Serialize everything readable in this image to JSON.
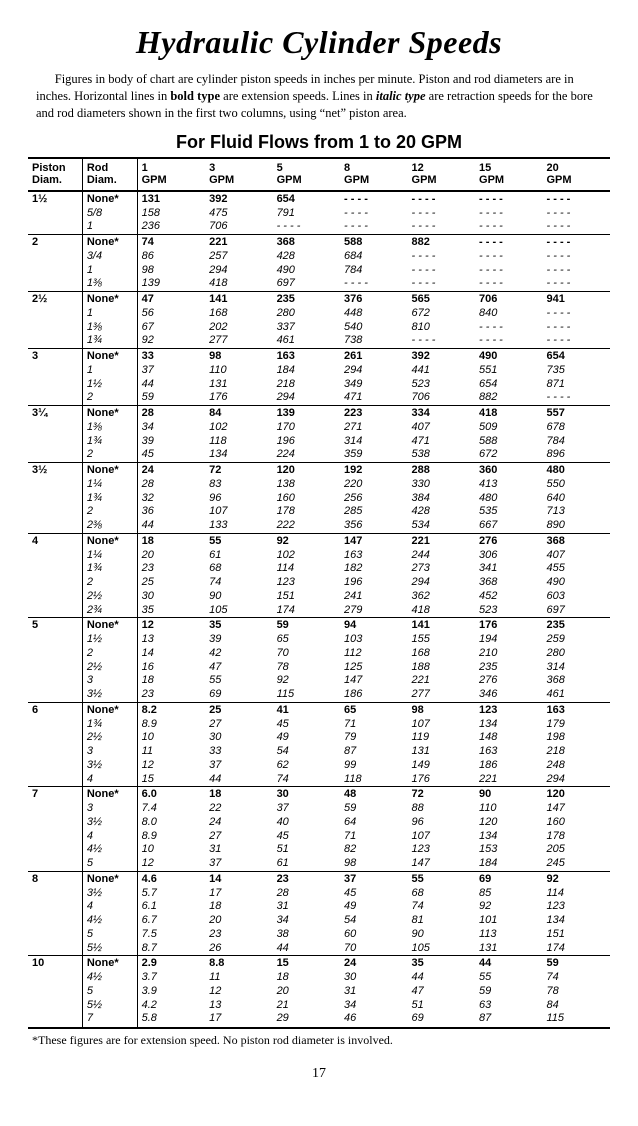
{
  "title": "Hydraulic Cylinder Speeds",
  "intro_before_bold": "Figures in body of chart are cylinder piston speeds in inches per minute. Piston and rod diameters are in inches. Horizontal lines in ",
  "intro_bold": "bold type",
  "intro_mid": " are extension speeds. Lines in ",
  "intro_italic": "italic type",
  "intro_after": " are retraction speeds for the bore and rod diameters shown in the first two columns, using “net” piston area.",
  "subtitle": "For Fluid Flows from 1 to 20 GPM",
  "columns": {
    "piston": "Piston\nDiam.",
    "rod": "Rod\nDiam.",
    "gpm": [
      "1\nGPM",
      "3\nGPM",
      "5\nGPM",
      "8\nGPM",
      "12\nGPM",
      "15\nGPM",
      "20\nGPM"
    ]
  },
  "groups": [
    {
      "piston": "1½",
      "rows": [
        {
          "rod": "None*",
          "type": "ext",
          "v": [
            "131",
            "392",
            "654",
            "- - - -",
            "- - - -",
            "- - - -",
            "- - - -"
          ]
        },
        {
          "rod": "5/8",
          "type": "ret",
          "v": [
            "158",
            "475",
            "791",
            "- - - -",
            "- - - -",
            "- - - -",
            "- - - -"
          ]
        },
        {
          "rod": "1",
          "type": "ret",
          "v": [
            "236",
            "706",
            "- - - -",
            "- - - -",
            "- - - -",
            "- - - -",
            "- - - -"
          ]
        }
      ]
    },
    {
      "piston": "2",
      "rows": [
        {
          "rod": "None*",
          "type": "ext",
          "v": [
            "74",
            "221",
            "368",
            "588",
            "882",
            "- - - -",
            "- - - -"
          ]
        },
        {
          "rod": "3/4",
          "type": "ret",
          "v": [
            "86",
            "257",
            "428",
            "684",
            "- - - -",
            "- - - -",
            "- - - -"
          ]
        },
        {
          "rod": "1",
          "type": "ret",
          "v": [
            "98",
            "294",
            "490",
            "784",
            "- - - -",
            "- - - -",
            "- - - -"
          ]
        },
        {
          "rod": "1⅜",
          "type": "ret",
          "v": [
            "139",
            "418",
            "697",
            "- - - -",
            "- - - -",
            "- - - -",
            "- - - -"
          ]
        }
      ]
    },
    {
      "piston": "2½",
      "rows": [
        {
          "rod": "None*",
          "type": "ext",
          "v": [
            "47",
            "141",
            "235",
            "376",
            "565",
            "706",
            "941"
          ]
        },
        {
          "rod": "1",
          "type": "ret",
          "v": [
            "56",
            "168",
            "280",
            "448",
            "672",
            "840",
            "- - - -"
          ]
        },
        {
          "rod": "1⅜",
          "type": "ret",
          "v": [
            "67",
            "202",
            "337",
            "540",
            "810",
            "- - - -",
            "- - - -"
          ]
        },
        {
          "rod": "1¾",
          "type": "ret",
          "v": [
            "92",
            "277",
            "461",
            "738",
            "- - - -",
            "- - - -",
            "- - - -"
          ]
        }
      ]
    },
    {
      "piston": "3",
      "rows": [
        {
          "rod": "None*",
          "type": "ext",
          "v": [
            "33",
            "98",
            "163",
            "261",
            "392",
            "490",
            "654"
          ]
        },
        {
          "rod": "1",
          "type": "ret",
          "v": [
            "37",
            "110",
            "184",
            "294",
            "441",
            "551",
            "735"
          ]
        },
        {
          "rod": "1½",
          "type": "ret",
          "v": [
            "44",
            "131",
            "218",
            "349",
            "523",
            "654",
            "871"
          ]
        },
        {
          "rod": "2",
          "type": "ret",
          "v": [
            "59",
            "176",
            "294",
            "471",
            "706",
            "882",
            "- - - -"
          ]
        }
      ]
    },
    {
      "piston": "3¼",
      "rows": [
        {
          "rod": "None*",
          "type": "ext",
          "v": [
            "28",
            "84",
            "139",
            "223",
            "334",
            "418",
            "557"
          ]
        },
        {
          "rod": "1⅜",
          "type": "ret",
          "v": [
            "34",
            "102",
            "170",
            "271",
            "407",
            "509",
            "678"
          ]
        },
        {
          "rod": "1¾",
          "type": "ret",
          "v": [
            "39",
            "118",
            "196",
            "314",
            "471",
            "588",
            "784"
          ]
        },
        {
          "rod": "2",
          "type": "ret",
          "v": [
            "45",
            "134",
            "224",
            "359",
            "538",
            "672",
            "896"
          ]
        }
      ]
    },
    {
      "piston": "3½",
      "rows": [
        {
          "rod": "None*",
          "type": "ext",
          "v": [
            "24",
            "72",
            "120",
            "192",
            "288",
            "360",
            "480"
          ]
        },
        {
          "rod": "1¼",
          "type": "ret",
          "v": [
            "28",
            "83",
            "138",
            "220",
            "330",
            "413",
            "550"
          ]
        },
        {
          "rod": "1¾",
          "type": "ret",
          "v": [
            "32",
            "96",
            "160",
            "256",
            "384",
            "480",
            "640"
          ]
        },
        {
          "rod": "2",
          "type": "ret",
          "v": [
            "36",
            "107",
            "178",
            "285",
            "428",
            "535",
            "713"
          ]
        },
        {
          "rod": "2⅜",
          "type": "ret",
          "v": [
            "44",
            "133",
            "222",
            "356",
            "534",
            "667",
            "890"
          ]
        }
      ]
    },
    {
      "piston": "4",
      "rows": [
        {
          "rod": "None*",
          "type": "ext",
          "v": [
            "18",
            "55",
            "92",
            "147",
            "221",
            "276",
            "368"
          ]
        },
        {
          "rod": "1¼",
          "type": "ret",
          "v": [
            "20",
            "61",
            "102",
            "163",
            "244",
            "306",
            "407"
          ]
        },
        {
          "rod": "1¾",
          "type": "ret",
          "v": [
            "23",
            "68",
            "114",
            "182",
            "273",
            "341",
            "455"
          ]
        },
        {
          "rod": "2",
          "type": "ret",
          "v": [
            "25",
            "74",
            "123",
            "196",
            "294",
            "368",
            "490"
          ]
        },
        {
          "rod": "2½",
          "type": "ret",
          "v": [
            "30",
            "90",
            "151",
            "241",
            "362",
            "452",
            "603"
          ]
        },
        {
          "rod": "2¾",
          "type": "ret",
          "v": [
            "35",
            "105",
            "174",
            "279",
            "418",
            "523",
            "697"
          ]
        }
      ]
    },
    {
      "piston": "5",
      "rows": [
        {
          "rod": "None*",
          "type": "ext",
          "v": [
            "12",
            "35",
            "59",
            "94",
            "141",
            "176",
            "235"
          ]
        },
        {
          "rod": "1½",
          "type": "ret",
          "v": [
            "13",
            "39",
            "65",
            "103",
            "155",
            "194",
            "259"
          ]
        },
        {
          "rod": "2",
          "type": "ret",
          "v": [
            "14",
            "42",
            "70",
            "112",
            "168",
            "210",
            "280"
          ]
        },
        {
          "rod": "2½",
          "type": "ret",
          "v": [
            "16",
            "47",
            "78",
            "125",
            "188",
            "235",
            "314"
          ]
        },
        {
          "rod": "3",
          "type": "ret",
          "v": [
            "18",
            "55",
            "92",
            "147",
            "221",
            "276",
            "368"
          ]
        },
        {
          "rod": "3½",
          "type": "ret",
          "v": [
            "23",
            "69",
            "115",
            "186",
            "277",
            "346",
            "461"
          ]
        }
      ]
    },
    {
      "piston": "6",
      "rows": [
        {
          "rod": "None*",
          "type": "ext",
          "v": [
            "8.2",
            "25",
            "41",
            "65",
            "98",
            "123",
            "163"
          ]
        },
        {
          "rod": "1¾",
          "type": "ret",
          "v": [
            "8.9",
            "27",
            "45",
            "71",
            "107",
            "134",
            "179"
          ]
        },
        {
          "rod": "2½",
          "type": "ret",
          "v": [
            "10",
            "30",
            "49",
            "79",
            "119",
            "148",
            "198"
          ]
        },
        {
          "rod": "3",
          "type": "ret",
          "v": [
            "11",
            "33",
            "54",
            "87",
            "131",
            "163",
            "218"
          ]
        },
        {
          "rod": "3½",
          "type": "ret",
          "v": [
            "12",
            "37",
            "62",
            "99",
            "149",
            "186",
            "248"
          ]
        },
        {
          "rod": "4",
          "type": "ret",
          "v": [
            "15",
            "44",
            "74",
            "118",
            "176",
            "221",
            "294"
          ]
        }
      ]
    },
    {
      "piston": "7",
      "rows": [
        {
          "rod": "None*",
          "type": "ext",
          "v": [
            "6.0",
            "18",
            "30",
            "48",
            "72",
            "90",
            "120"
          ]
        },
        {
          "rod": "3",
          "type": "ret",
          "v": [
            "7.4",
            "22",
            "37",
            "59",
            "88",
            "110",
            "147"
          ]
        },
        {
          "rod": "3½",
          "type": "ret",
          "v": [
            "8.0",
            "24",
            "40",
            "64",
            "96",
            "120",
            "160"
          ]
        },
        {
          "rod": "4",
          "type": "ret",
          "v": [
            "8.9",
            "27",
            "45",
            "71",
            "107",
            "134",
            "178"
          ]
        },
        {
          "rod": "4½",
          "type": "ret",
          "v": [
            "10",
            "31",
            "51",
            "82",
            "123",
            "153",
            "205"
          ]
        },
        {
          "rod": "5",
          "type": "ret",
          "v": [
            "12",
            "37",
            "61",
            "98",
            "147",
            "184",
            "245"
          ]
        }
      ]
    },
    {
      "piston": "8",
      "rows": [
        {
          "rod": "None*",
          "type": "ext",
          "v": [
            "4.6",
            "14",
            "23",
            "37",
            "55",
            "69",
            "92"
          ]
        },
        {
          "rod": "3½",
          "type": "ret",
          "v": [
            "5.7",
            "17",
            "28",
            "45",
            "68",
            "85",
            "114"
          ]
        },
        {
          "rod": "4",
          "type": "ret",
          "v": [
            "6.1",
            "18",
            "31",
            "49",
            "74",
            "92",
            "123"
          ]
        },
        {
          "rod": "4½",
          "type": "ret",
          "v": [
            "6.7",
            "20",
            "34",
            "54",
            "81",
            "101",
            "134"
          ]
        },
        {
          "rod": "5",
          "type": "ret",
          "v": [
            "7.5",
            "23",
            "38",
            "60",
            "90",
            "113",
            "151"
          ]
        },
        {
          "rod": "5½",
          "type": "ret",
          "v": [
            "8.7",
            "26",
            "44",
            "70",
            "105",
            "131",
            "174"
          ]
        }
      ]
    },
    {
      "piston": "10",
      "rows": [
        {
          "rod": "None*",
          "type": "ext",
          "v": [
            "2.9",
            "8.8",
            "15",
            "24",
            "35",
            "44",
            "59"
          ]
        },
        {
          "rod": "4½",
          "type": "ret",
          "v": [
            "3.7",
            "11",
            "18",
            "30",
            "44",
            "55",
            "74"
          ]
        },
        {
          "rod": "5",
          "type": "ret",
          "v": [
            "3.9",
            "12",
            "20",
            "31",
            "47",
            "59",
            "78"
          ]
        },
        {
          "rod": "5½",
          "type": "ret",
          "v": [
            "4.2",
            "13",
            "21",
            "34",
            "51",
            "63",
            "84"
          ]
        },
        {
          "rod": "7",
          "type": "ret",
          "v": [
            "5.8",
            "17",
            "29",
            "46",
            "69",
            "87",
            "115"
          ]
        }
      ]
    }
  ],
  "footnote": "*These figures are for extension speed. No piston rod diameter is involved.",
  "pagenum": "17"
}
